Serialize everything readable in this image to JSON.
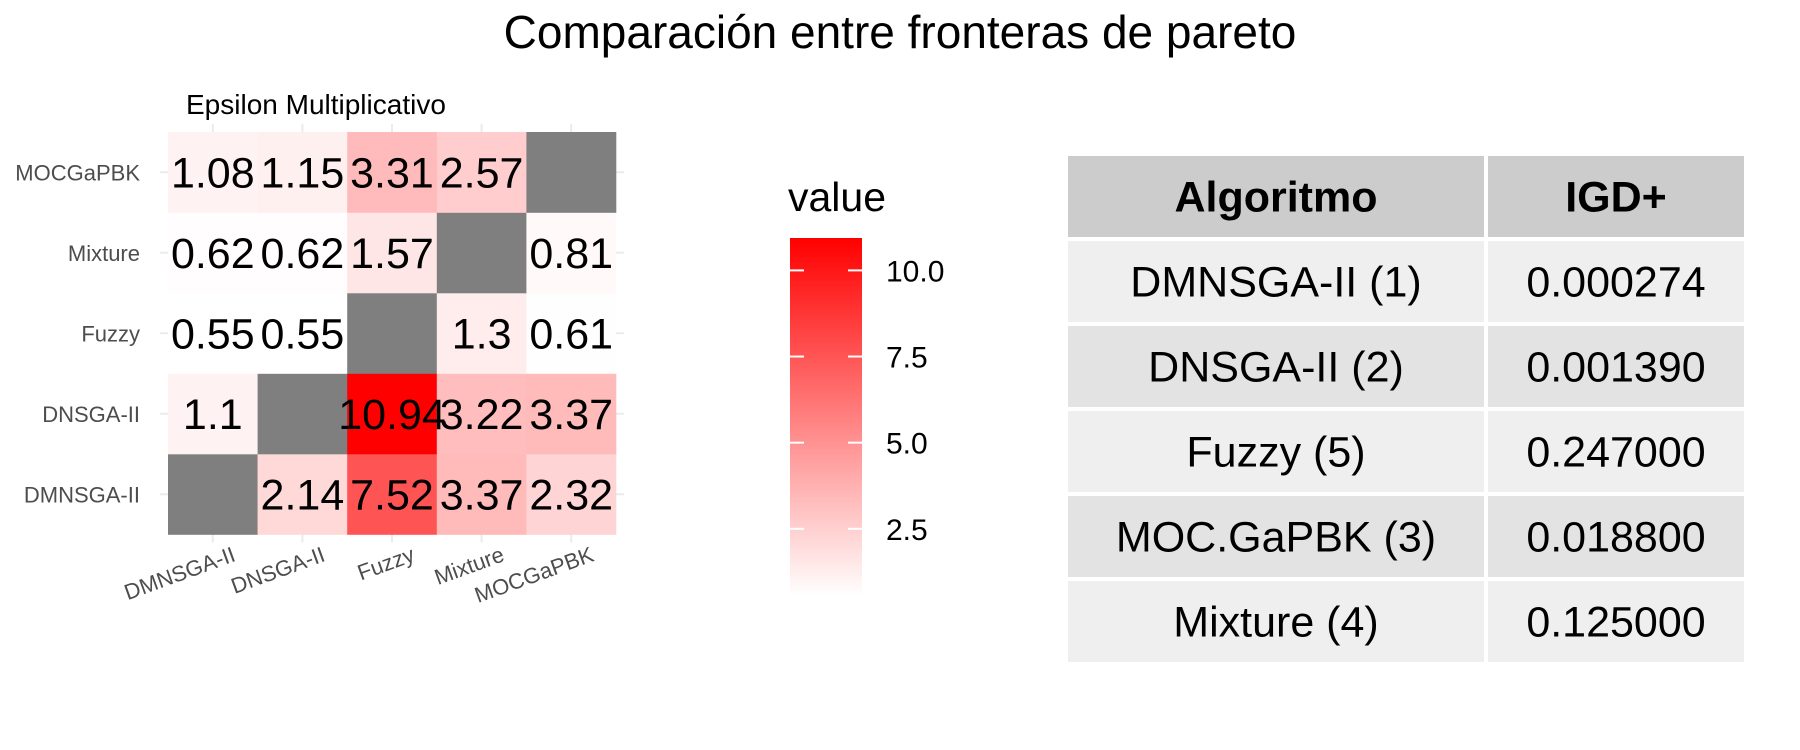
{
  "title": "Comparación entre fronteras de pareto",
  "chart_data": [
    {
      "type": "heatmap",
      "title": "Epsilon Multiplicativo",
      "xlabel": "",
      "ylabel": "",
      "x_categories": [
        "DMNSGA-II",
        "DNSGA-II",
        "Fuzzy",
        "Mixture",
        "MOCGaPBK"
      ],
      "y_categories": [
        "DMNSGA-II",
        "DNSGA-II",
        "Fuzzy",
        "Mixture",
        "MOCGaPBK"
      ],
      "values": [
        [
          null,
          2.14,
          7.52,
          3.37,
          2.32
        ],
        [
          1.1,
          null,
          10.94,
          3.22,
          3.37
        ],
        [
          0.55,
          0.55,
          null,
          1.3,
          0.61
        ],
        [
          0.62,
          0.62,
          1.57,
          null,
          0.81
        ],
        [
          1.08,
          1.15,
          3.31,
          2.57,
          null
        ]
      ],
      "missing_color": "#7f7f7f",
      "color_low": "#ffffff",
      "color_high": "#ff0000",
      "value_range": [
        0.55,
        10.94
      ],
      "legend": {
        "title": "value",
        "ticks": [
          "2.5",
          "5.0",
          "7.5",
          "10.0"
        ],
        "tick_values": [
          2.5,
          5.0,
          7.5,
          10.0
        ],
        "position": "right"
      },
      "grid": true
    },
    {
      "type": "table",
      "columns": [
        "Algoritmo",
        "IGD+"
      ],
      "rows": [
        [
          "DMNSGA-II (1)",
          "0.000274"
        ],
        [
          "DNSGA-II (2)",
          "0.001390"
        ],
        [
          "Fuzzy (5)",
          "0.247000"
        ],
        [
          "MOC.GaPBK (3)",
          "0.018800"
        ],
        [
          "Mixture (4)",
          "0.125000"
        ]
      ],
      "header_color": "#cccccc",
      "row_colors": [
        "#efefef",
        "#e3e3e3"
      ]
    }
  ]
}
